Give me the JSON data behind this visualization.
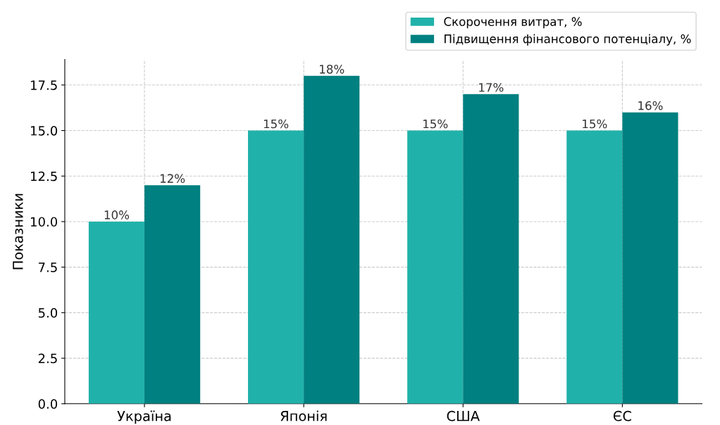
{
  "chart_data": {
    "type": "bar",
    "ylabel": "Показники",
    "categories": [
      "Україна",
      "Японія",
      "США",
      "ЄС"
    ],
    "series": [
      {
        "name": "Скорочення витрат, %",
        "color": "#20b2aa",
        "values": [
          10,
          15,
          15,
          15
        ],
        "value_labels": [
          "10%",
          "15%",
          "15%",
          "15%"
        ]
      },
      {
        "name": "Підвищення фінансового потенціалу, %",
        "color": "#008080",
        "values": [
          12,
          18,
          17,
          16
        ],
        "value_labels": [
          "12%",
          "18%",
          "17%",
          "16%"
        ]
      }
    ],
    "ylim": [
      0,
      18.9
    ],
    "yticks": [
      {
        "value": 0,
        "label": "0.0"
      },
      {
        "value": 2.5,
        "label": "2.5"
      },
      {
        "value": 5,
        "label": "5.0"
      },
      {
        "value": 7.5,
        "label": "7.5"
      },
      {
        "value": 10,
        "label": "10.0"
      },
      {
        "value": 12.5,
        "label": "12.5"
      },
      {
        "value": 15,
        "label": "15.0"
      },
      {
        "value": 17.5,
        "label": "17.5"
      }
    ],
    "grid": true,
    "legend": "top right"
  }
}
